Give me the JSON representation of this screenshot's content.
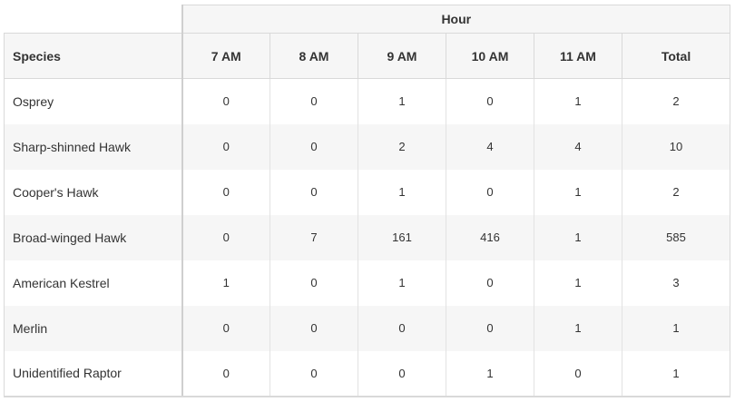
{
  "table": {
    "group_header": "Hour",
    "columns": [
      "Species",
      "7 AM",
      "8 AM",
      "9 AM",
      "10 AM",
      "11 AM",
      "Total"
    ],
    "rows": [
      {
        "species": "Osprey",
        "values": [
          "0",
          "0",
          "1",
          "0",
          "1"
        ],
        "total": "2"
      },
      {
        "species": "Sharp-shinned Hawk",
        "values": [
          "0",
          "0",
          "2",
          "4",
          "4"
        ],
        "total": "10"
      },
      {
        "species": "Cooper's Hawk",
        "values": [
          "0",
          "0",
          "1",
          "0",
          "1"
        ],
        "total": "2"
      },
      {
        "species": "Broad-winged Hawk",
        "values": [
          "0",
          "7",
          "161",
          "416",
          "1"
        ],
        "total": "585"
      },
      {
        "species": "American Kestrel",
        "values": [
          "1",
          "0",
          "1",
          "0",
          "1"
        ],
        "total": "3"
      },
      {
        "species": "Merlin",
        "values": [
          "0",
          "0",
          "0",
          "0",
          "1"
        ],
        "total": "1"
      },
      {
        "species": "Unidentified Raptor",
        "values": [
          "0",
          "0",
          "0",
          "1",
          "0"
        ],
        "total": "1"
      }
    ]
  }
}
